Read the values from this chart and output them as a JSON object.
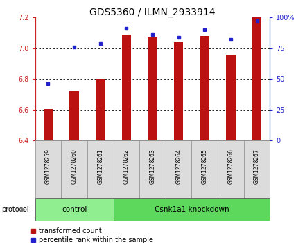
{
  "title": "GDS5360 / ILMN_2933914",
  "samples": [
    "GSM1278259",
    "GSM1278260",
    "GSM1278261",
    "GSM1278262",
    "GSM1278263",
    "GSM1278264",
    "GSM1278265",
    "GSM1278266",
    "GSM1278267"
  ],
  "red_values": [
    6.61,
    6.72,
    6.8,
    7.09,
    7.07,
    7.04,
    7.08,
    6.96,
    7.2
  ],
  "blue_values": [
    6.77,
    7.01,
    7.03,
    7.13,
    7.09,
    7.07,
    7.12,
    7.06,
    7.18
  ],
  "ylim_left": [
    6.4,
    7.2
  ],
  "ylim_right": [
    0,
    100
  ],
  "yticks_left": [
    6.4,
    6.6,
    6.8,
    7.0,
    7.2
  ],
  "yticks_right": [
    0,
    25,
    50,
    75,
    100
  ],
  "protocol_groups": [
    {
      "label": "control",
      "start": 0,
      "end": 3,
      "color": "#90EE90"
    },
    {
      "label": "Csnk1a1 knockdown",
      "start": 3,
      "end": 9,
      "color": "#5DD85D"
    }
  ],
  "bar_color": "#BB1111",
  "dot_color": "#2222CC",
  "bg_color": "#DCDCDC",
  "left_axis_color": "#CC2222",
  "right_axis_color": "#2222CC",
  "bar_width": 0.35,
  "title_fontsize": 10,
  "tick_fontsize": 7,
  "label_fontsize": 5.5,
  "legend_fontsize": 7
}
